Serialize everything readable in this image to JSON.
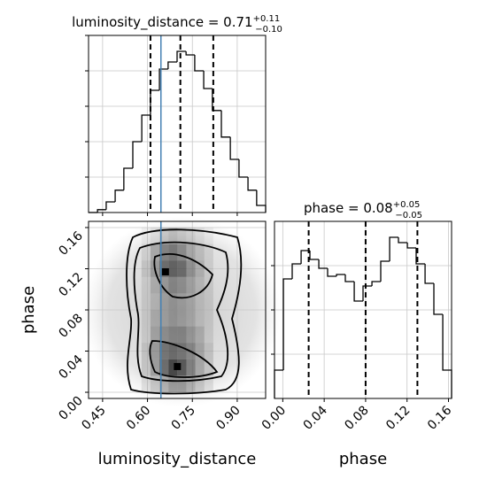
{
  "chart_data": [
    {
      "type": "histogram",
      "title": {
        "text": "luminosity_distance = 0.71",
        "sup": "+0.11",
        "sub": "−0.10"
      },
      "bins": [
        0.403,
        0.433,
        0.462,
        0.492,
        0.521,
        0.551,
        0.581,
        0.61,
        0.64,
        0.669,
        0.699,
        0.729,
        0.758,
        0.788,
        0.817,
        0.847,
        0.877,
        0.906,
        0.936,
        0.965,
        0.995
      ],
      "counts": [
        0.0,
        0.08,
        0.3,
        0.63,
        1.25,
        2.0,
        2.75,
        3.45,
        4.05,
        4.25,
        4.55,
        4.45,
        4.0,
        3.5,
        2.88,
        2.13,
        1.5,
        1.0,
        0.63,
        0.2
      ],
      "color": "#000000",
      "xlim": [
        0.403,
        0.995
      ],
      "xticks": [
        0.45,
        0.6,
        0.75,
        0.9
      ],
      "ylim": [
        0,
        5
      ],
      "yticks": [
        1,
        2,
        3,
        4,
        5
      ],
      "quantiles": [
        0.61,
        0.71,
        0.82
      ],
      "truth": 0.645,
      "truth_color": "#4682b4",
      "grid": true
    },
    {
      "type": "hist2d",
      "xlabel": "luminosity_distance",
      "ylabel": "phase",
      "xlim": [
        0.403,
        0.995
      ],
      "xticks": [
        {
          "value": 0.45,
          "label": "0.45"
        },
        {
          "value": 0.6,
          "label": "0.60"
        },
        {
          "value": 0.75,
          "label": "0.75"
        },
        {
          "value": 0.9,
          "label": "0.90"
        }
      ],
      "ylim": [
        -0.006,
        0.166
      ],
      "yticks": [
        {
          "value": 0,
          "label": "0.00"
        },
        {
          "value": 0.04,
          "label": "0.04"
        },
        {
          "value": 0.08,
          "label": "0.08"
        },
        {
          "value": 0.12,
          "label": "0.12"
        },
        {
          "value": 0.16,
          "label": "0.16"
        }
      ],
      "x_edges": [
        0.55,
        0.58,
        0.61,
        0.64,
        0.67,
        0.7,
        0.73,
        0.76,
        0.79,
        0.82,
        0.85
      ],
      "y_edges": [
        0,
        0.016,
        0.032,
        0.048,
        0.064,
        0.08,
        0.096,
        0.112,
        0.128,
        0.144,
        0.16
      ],
      "density": [
        [
          0,
          0.1,
          0.2,
          0.3,
          0.4,
          0.4,
          0.3,
          0.2,
          0.1,
          0
        ],
        [
          0,
          0.15,
          0.35,
          0.6,
          0.8,
          0.7,
          0.5,
          0.3,
          0.15,
          0
        ],
        [
          0,
          0.15,
          0.35,
          0.55,
          0.6,
          0.55,
          0.45,
          0.3,
          0.15,
          0
        ],
        [
          0,
          0.1,
          0.3,
          0.4,
          0.45,
          0.45,
          0.35,
          0.25,
          0.1,
          0
        ],
        [
          0,
          0.1,
          0.25,
          0.3,
          0.35,
          0.3,
          0.25,
          0.15,
          0.1,
          0
        ],
        [
          0,
          0.1,
          0.2,
          0.3,
          0.35,
          0.3,
          0.25,
          0.15,
          0.1,
          0
        ],
        [
          0,
          0.1,
          0.25,
          0.35,
          0.45,
          0.4,
          0.3,
          0.2,
          0.1,
          0
        ],
        [
          0,
          0.15,
          0.35,
          0.6,
          0.65,
          0.6,
          0.4,
          0.25,
          0.1,
          0
        ],
        [
          0,
          0.1,
          0.3,
          0.5,
          0.55,
          0.45,
          0.3,
          0.2,
          0.1,
          0
        ],
        [
          0,
          0.05,
          0.1,
          0.2,
          0.25,
          0.2,
          0.15,
          0.1,
          0.05,
          0
        ]
      ],
      "peaks": {
        "x": [
          0.66,
          0.7
        ],
        "y": [
          0.117,
          0.025
        ]
      },
      "truth": 0.645,
      "truth_color": "#4682b4",
      "grid": true
    },
    {
      "type": "histogram",
      "title": {
        "text": "phase = 0.08",
        "sup": "+0.05",
        "sub": "−0.05"
      },
      "xlabel": "phase",
      "bins": [
        -0.008,
        0.0006,
        0.0091,
        0.0177,
        0.0262,
        0.0348,
        0.0433,
        0.0519,
        0.0604,
        0.069,
        0.0775,
        0.0861,
        0.0946,
        0.1032,
        0.1117,
        0.1203,
        0.1288,
        0.1374,
        0.1459,
        0.1545,
        0.163
      ],
      "counts": [
        0.64,
        2.7,
        3.04,
        3.34,
        3.14,
        2.94,
        2.76,
        2.8,
        2.64,
        2.2,
        2.54,
        2.64,
        3.1,
        3.64,
        3.52,
        3.4,
        3.04,
        2.6,
        1.9,
        0.64
      ],
      "color": "#000000",
      "xlim": [
        -0.008,
        0.163
      ],
      "xticks": [
        {
          "value": 0,
          "label": "0.00"
        },
        {
          "value": 0.04,
          "label": "0.04"
        },
        {
          "value": 0.08,
          "label": "0.08"
        },
        {
          "value": 0.12,
          "label": "0.12"
        },
        {
          "value": 0.16,
          "label": "0.16"
        }
      ],
      "ylim": [
        0,
        4
      ],
      "yticks": [
        1,
        2,
        3
      ],
      "quantiles": [
        0.025,
        0.08,
        0.13
      ],
      "grid": true
    }
  ]
}
